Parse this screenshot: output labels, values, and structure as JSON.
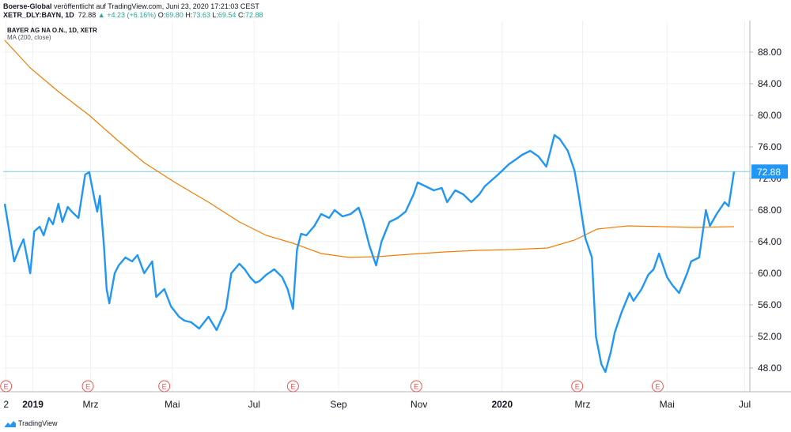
{
  "header": {
    "line1_user": "Boerse-Global",
    "line1_rest": " veröffentlicht auf TradingView.com, Juni 23, 2020 17:21:03 CEST",
    "symbol": "XETR_DLY:BAYN, 1D",
    "last": "72.88",
    "change_arrow": "▲",
    "change": "+4.23 (+6.16%)",
    "o_label": "O:",
    "o_value": "69.80",
    "h_label": "H:",
    "h_value": "73.63",
    "l_label": "L:",
    "l_value": "69.54",
    "c_label": "C:",
    "c_value": "72.88"
  },
  "legend": {
    "series": "BAYER AG NA O.N., 1D, XETR",
    "ma": "MA (200, close)"
  },
  "footer": {
    "brand": "TradingView"
  },
  "colors": {
    "price": "#2196f3",
    "ma": "#f57c00",
    "last_line": "#7ec8e3",
    "grid": "#eef0f3",
    "earnings": "#ef5350"
  },
  "chart_data": {
    "type": "line",
    "x_range": [
      "2018-12-27",
      "2020-06-23"
    ],
    "ylim": [
      45,
      92
    ],
    "grid": true,
    "y_ticks": [
      48,
      52,
      56,
      60,
      64,
      68,
      72,
      76,
      80,
      84,
      88
    ],
    "y_tick_labels": [
      "48.00",
      "52.00",
      "56.00",
      "60.00",
      "64.00",
      "68.00",
      "72.00",
      "76.00",
      "80.00",
      "84.00",
      "88.00"
    ],
    "last_value": 72.88,
    "last_label": "72.88",
    "x_ticks": [
      {
        "date": "2018-12-28",
        "label": "2",
        "bold": false
      },
      {
        "date": "2019-01-17",
        "label": "2019",
        "bold": true
      },
      {
        "date": "2019-03-01",
        "label": "Mrz",
        "bold": false
      },
      {
        "date": "2019-05-01",
        "label": "Mai",
        "bold": false
      },
      {
        "date": "2019-07-01",
        "label": "Jul",
        "bold": false
      },
      {
        "date": "2019-09-02",
        "label": "Sep",
        "bold": false
      },
      {
        "date": "2019-11-01",
        "label": "Nov",
        "bold": false
      },
      {
        "date": "2020-01-02",
        "label": "2020",
        "bold": true
      },
      {
        "date": "2020-03-02",
        "label": "Mrz",
        "bold": false
      },
      {
        "date": "2020-05-04",
        "label": "Mai",
        "bold": false
      },
      {
        "date": "2020-07-01",
        "label": "Jul",
        "bold": false
      }
    ],
    "earnings_markers": [
      {
        "date": "2018-12-28",
        "label": "E"
      },
      {
        "date": "2019-02-27",
        "label": "E"
      },
      {
        "date": "2019-04-25",
        "label": "E"
      },
      {
        "date": "2019-07-30",
        "label": "E"
      },
      {
        "date": "2019-10-30",
        "label": "E"
      },
      {
        "date": "2020-02-27",
        "label": "E"
      },
      {
        "date": "2020-04-27",
        "label": "E"
      }
    ],
    "series": [
      {
        "name": "BAYER AG NA O.N., 1D, XETR",
        "x": [
          "2018-12-27",
          "2019-01-03",
          "2019-01-07",
          "2019-01-10",
          "2019-01-15",
          "2019-01-18",
          "2019-01-22",
          "2019-01-25",
          "2019-01-29",
          "2019-02-01",
          "2019-02-05",
          "2019-02-08",
          "2019-02-12",
          "2019-02-15",
          "2019-02-20",
          "2019-02-25",
          "2019-02-28",
          "2019-03-04",
          "2019-03-06",
          "2019-03-08",
          "2019-03-11",
          "2019-03-13",
          "2019-03-15",
          "2019-03-19",
          "2019-03-22",
          "2019-03-27",
          "2019-04-01",
          "2019-04-05",
          "2019-04-10",
          "2019-04-16",
          "2019-04-19",
          "2019-04-25",
          "2019-04-30",
          "2019-05-06",
          "2019-05-10",
          "2019-05-15",
          "2019-05-21",
          "2019-05-28",
          "2019-06-03",
          "2019-06-10",
          "2019-06-14",
          "2019-06-20",
          "2019-06-24",
          "2019-06-28",
          "2019-07-02",
          "2019-07-05",
          "2019-07-10",
          "2019-07-16",
          "2019-07-22",
          "2019-07-26",
          "2019-07-30",
          "2019-08-02",
          "2019-08-05",
          "2019-08-09",
          "2019-08-15",
          "2019-08-20",
          "2019-08-26",
          "2019-08-30",
          "2019-09-05",
          "2019-09-11",
          "2019-09-17",
          "2019-09-20",
          "2019-09-25",
          "2019-09-30",
          "2019-10-04",
          "2019-10-10",
          "2019-10-16",
          "2019-10-22",
          "2019-10-28",
          "2019-10-31",
          "2019-11-06",
          "2019-11-12",
          "2019-11-18",
          "2019-11-22",
          "2019-11-28",
          "2019-12-04",
          "2019-12-10",
          "2019-12-16",
          "2019-12-20",
          "2019-12-30",
          "2020-01-07",
          "2020-01-13",
          "2020-01-17",
          "2020-01-23",
          "2020-01-29",
          "2020-02-04",
          "2020-02-10",
          "2020-02-14",
          "2020-02-20",
          "2020-02-25",
          "2020-02-28",
          "2020-03-04",
          "2020-03-09",
          "2020-03-12",
          "2020-03-16",
          "2020-03-19",
          "2020-03-23",
          "2020-03-26",
          "2020-03-31",
          "2020-04-06",
          "2020-04-09",
          "2020-04-15",
          "2020-04-20",
          "2020-04-24",
          "2020-04-28",
          "2020-05-04",
          "2020-05-08",
          "2020-05-13",
          "2020-05-19",
          "2020-05-22",
          "2020-05-28",
          "2020-06-02",
          "2020-06-05",
          "2020-06-10",
          "2020-06-16",
          "2020-06-19",
          "2020-06-23"
        ],
        "values": [
          68.8,
          61.5,
          63.2,
          64.3,
          60.0,
          65.3,
          65.9,
          64.8,
          67.0,
          66.2,
          68.8,
          66.5,
          68.4,
          67.8,
          67.0,
          72.5,
          72.8,
          69.3,
          67.8,
          69.8,
          63.5,
          58.0,
          56.2,
          60.0,
          61.0,
          62.0,
          61.5,
          62.3,
          60.0,
          61.5,
          57.0,
          58.0,
          55.8,
          54.5,
          54.0,
          53.8,
          53.0,
          54.5,
          52.8,
          55.5,
          60.0,
          61.2,
          60.5,
          59.5,
          58.8,
          59.0,
          59.8,
          60.5,
          59.5,
          58.0,
          55.5,
          63.0,
          65.0,
          64.8,
          66.0,
          67.5,
          67.0,
          68.0,
          67.2,
          67.5,
          68.3,
          66.8,
          63.5,
          61.0,
          64.0,
          66.5,
          67.0,
          67.8,
          70.0,
          71.5,
          71.0,
          70.5,
          70.8,
          69.0,
          70.5,
          70.0,
          69.0,
          70.0,
          71.0,
          72.5,
          73.8,
          74.5,
          75.0,
          75.5,
          74.8,
          73.5,
          77.5,
          77.0,
          75.5,
          73.0,
          70.0,
          64.5,
          62.0,
          52.0,
          48.5,
          47.5,
          50.0,
          52.5,
          55.0,
          57.5,
          56.5,
          58.0,
          59.8,
          60.5,
          62.5,
          59.5,
          58.5,
          57.5,
          60.0,
          61.5,
          62.0,
          68.0,
          66.0,
          67.5,
          69.0,
          68.5,
          72.88
        ]
      },
      {
        "name": "MA (200, close)",
        "x": [
          "2018-12-27",
          "2019-01-15",
          "2019-02-05",
          "2019-02-28",
          "2019-03-20",
          "2019-04-10",
          "2019-05-03",
          "2019-05-28",
          "2019-06-20",
          "2019-07-10",
          "2019-07-30",
          "2019-08-20",
          "2019-09-10",
          "2019-10-01",
          "2019-10-25",
          "2019-11-20",
          "2019-12-15",
          "2020-01-10",
          "2020-02-05",
          "2020-02-25",
          "2020-03-13",
          "2020-04-05",
          "2020-05-01",
          "2020-05-25",
          "2020-06-23"
        ],
        "values": [
          89.5,
          86.0,
          83.0,
          80.0,
          77.0,
          74.0,
          71.5,
          69.0,
          66.5,
          64.8,
          63.8,
          62.5,
          62.0,
          62.1,
          62.4,
          62.7,
          62.9,
          63.0,
          63.2,
          64.2,
          65.6,
          66.0,
          65.9,
          65.8,
          65.9
        ]
      }
    ]
  }
}
